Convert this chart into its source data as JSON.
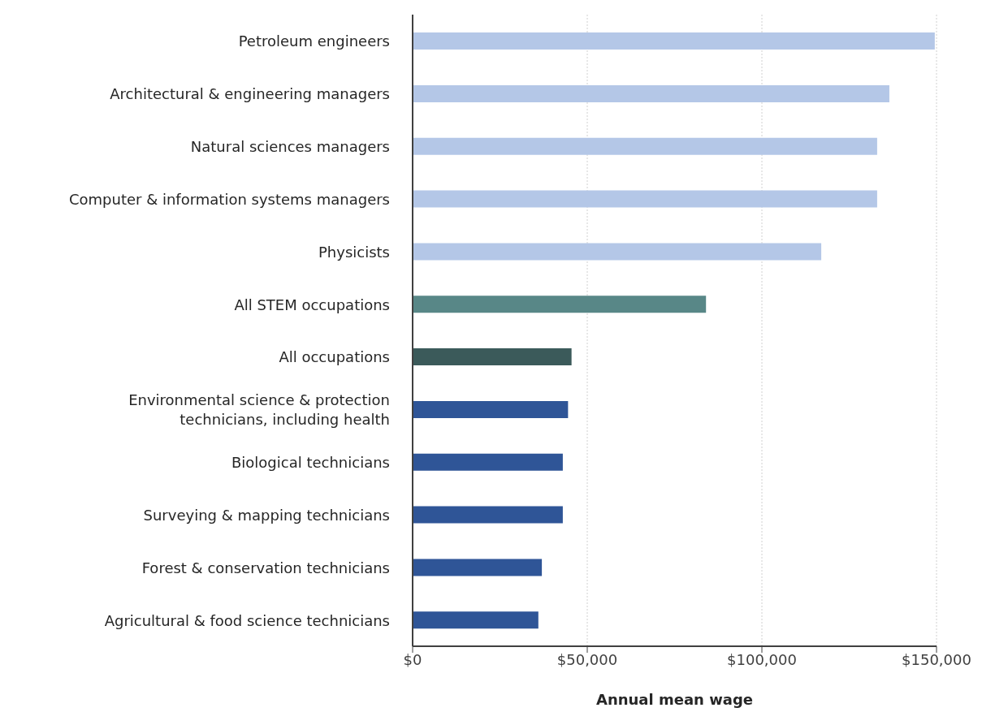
{
  "chart_data": {
    "type": "bar",
    "orientation": "horizontal",
    "xlabel": "Annual mean wage",
    "categories": [
      "Petroleum engineers",
      "Architectural & engineering managers",
      "Natural sciences managers",
      "Computer & information systems managers",
      "Physicists",
      "All STEM occupations",
      "All occupations",
      "Environmental science & protection technicians, including health",
      "Biological technicians",
      "Surveying & mapping technicians",
      "Forest & conservation technicians",
      "Agricultural & food science technicians"
    ],
    "values": [
      149500,
      136500,
      133000,
      133000,
      117000,
      84000,
      45500,
      44500,
      43000,
      43000,
      37000,
      36000
    ],
    "colors": [
      "#b4c7e7",
      "#b4c7e7",
      "#b4c7e7",
      "#b4c7e7",
      "#b4c7e7",
      "#588787",
      "#3b5a5a",
      "#2f5597",
      "#2f5597",
      "#2f5597",
      "#2f5597",
      "#2f5597"
    ],
    "xlim": [
      0,
      150000
    ],
    "xticks": [
      {
        "value": 0,
        "label": "$0"
      },
      {
        "value": 50000,
        "label": "$50,000"
      },
      {
        "value": 100000,
        "label": "$100,000"
      },
      {
        "value": 150000,
        "label": "$150,000"
      }
    ],
    "grid": "x",
    "legend": false
  }
}
